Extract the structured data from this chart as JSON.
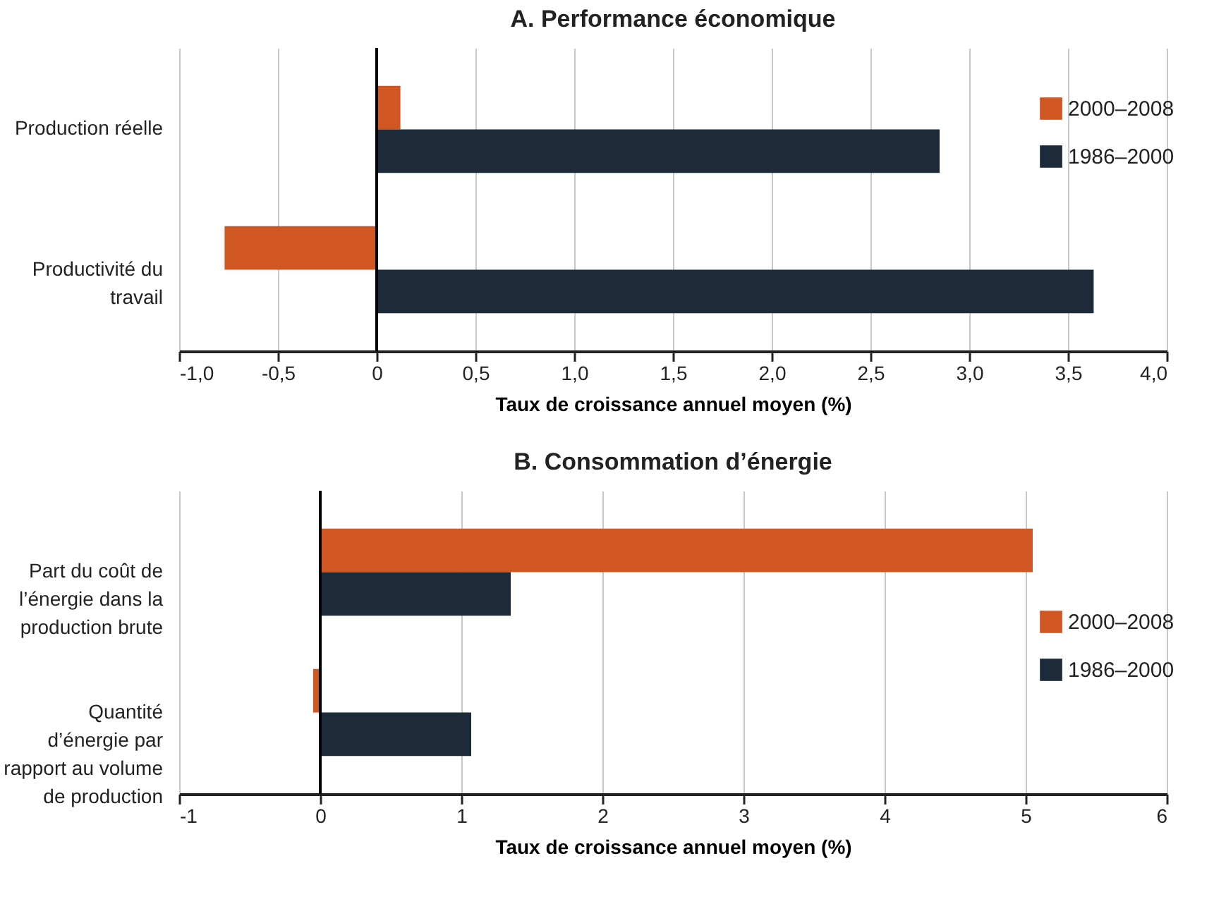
{
  "chart_data": [
    {
      "type": "bar",
      "orientation": "horizontal",
      "title": "A. Performance économique",
      "xlabel": "Taux de croissance annuel moyen (%)",
      "categories": [
        "Production réelle",
        "Productivité du travail"
      ],
      "series": [
        {
          "name": "2000–2008",
          "color": "#d05622",
          "values": [
            0.12,
            -0.77
          ]
        },
        {
          "name": "1986–2000",
          "color": "#1c2a3a",
          "values": [
            2.85,
            3.63
          ]
        }
      ],
      "xlim": [
        -1,
        4
      ],
      "xticks": [
        {
          "value": -1,
          "label": "-1,0"
        },
        {
          "value": -0.5,
          "label": "-0,5"
        },
        0,
        {
          "value": 0.5,
          "label": "0,5"
        },
        {
          "value": 1,
          "label": "1,0"
        },
        {
          "value": 1.5,
          "label": "1,5"
        },
        {
          "value": 2,
          "label": "2,0"
        },
        {
          "value": 2.5,
          "label": "2,5"
        },
        {
          "value": 3,
          "label": "3,0"
        },
        {
          "value": 3.5,
          "label": "3,5"
        },
        {
          "value": 4,
          "label": "4,0"
        }
      ],
      "grid": "x",
      "legend": "right",
      "ref_lines": [
        {
          "axis": "x",
          "value": 0,
          "label": null,
          "color": "#000000"
        }
      ]
    },
    {
      "type": "bar",
      "orientation": "horizontal",
      "title": "B. Consommation d’énergie",
      "xlabel": "Taux de croissance annuel moyen (%)",
      "categories": [
        "Part du coût de l’énergie dans la production brute",
        "Quantité d’énergie par rapport au volume de production"
      ],
      "series": [
        {
          "name": "2000–2008",
          "color": "#d05622",
          "values": [
            5.05,
            -0.05
          ]
        },
        {
          "name": "1986–2000",
          "color": "#1c2a3a",
          "values": [
            1.35,
            1.07
          ]
        }
      ],
      "xlim": [
        -1,
        6
      ],
      "xticks": [
        -1,
        0,
        1,
        2,
        3,
        4,
        5,
        6
      ],
      "grid": "x",
      "legend": "bottom right",
      "ref_lines": [
        {
          "axis": "x",
          "value": 0,
          "label": null,
          "color": "#000000"
        }
      ]
    }
  ]
}
